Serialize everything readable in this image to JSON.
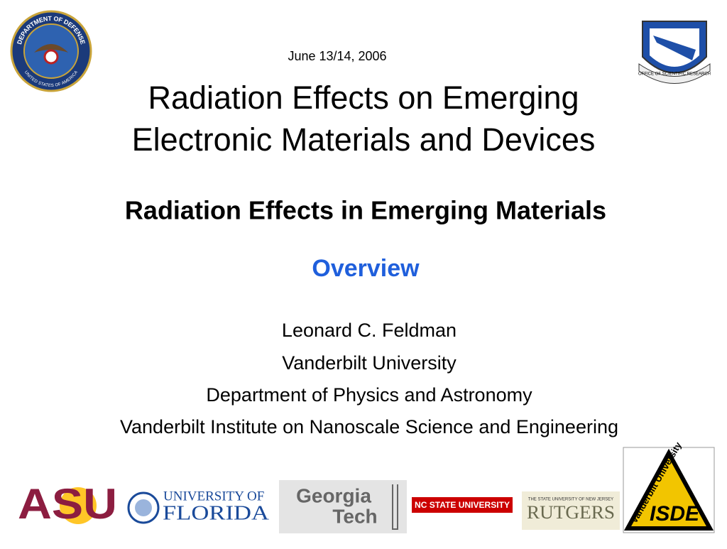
{
  "header": {
    "date": "June 13/14, 2006",
    "title_lines": [
      "Radiation Effects on Emerging",
      "Electronic Materials and Devices"
    ]
  },
  "subtitle": "Radiation Effects in Emerging Materials",
  "section": "Overview",
  "author_lines": [
    "Leonard C. Feldman",
    "Vanderbilt University",
    "Department of Physics and Astronomy",
    "Vanderbilt Institute on Nanoscale Science and Engineering"
  ],
  "seals": {
    "dod_top": "DEPARTMENT OF DEFENSE",
    "dod_bottom": "UNITED STATES OF AMERICA",
    "afosr": "OFFICE OF SCIENTIFIC RESEARCH"
  },
  "logos": {
    "asu": "ASU",
    "uf_top": "UNIVERSITY OF",
    "uf_bottom": "FLORIDA",
    "gt_top": "Georgia",
    "gt_bottom": "Tech",
    "ncsu": "NC STATE UNIVERSITY",
    "rutgers_top": "THE STATE UNIVERSITY OF NEW JERSEY",
    "rutgers": "RUTGERS",
    "vu": "Vanderbilt University",
    "isde": "ISDE"
  }
}
